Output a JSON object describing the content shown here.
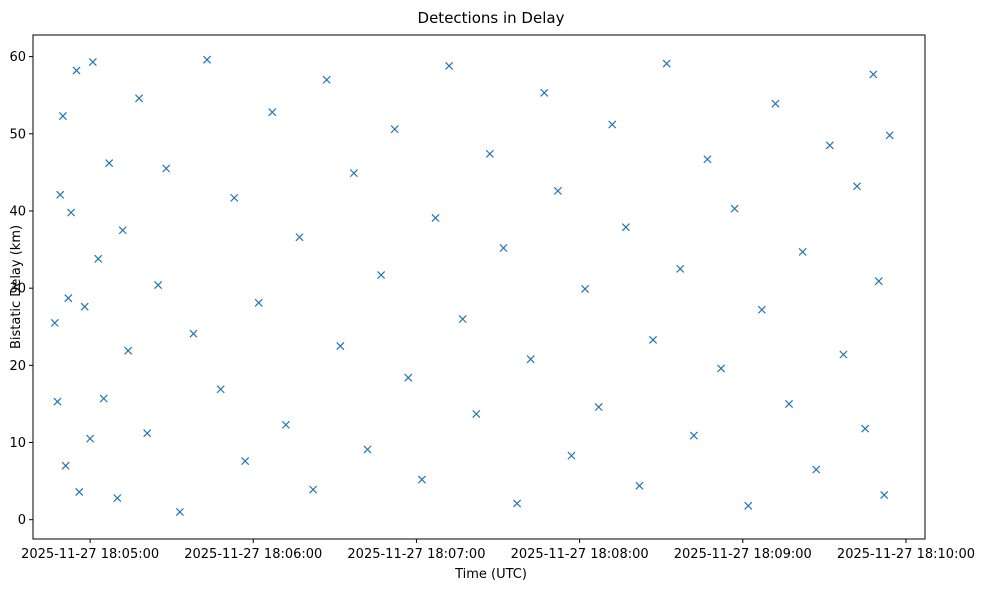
{
  "chart_data": {
    "type": "scatter",
    "title": "Detections in Delay",
    "xlabel": "Time (UTC)",
    "ylabel": "Bistatic Delay (km)",
    "xlim": [
      "2025-11-27 18:04:39",
      "2025-11-27 18:10:07"
    ],
    "ylim": [
      -2.5,
      62.8
    ],
    "grid": false,
    "legend": "none",
    "marker": "x",
    "x_ticks": [
      "2025-11-27 18:05:00",
      "2025-11-27 18:06:00",
      "2025-11-27 18:07:00",
      "2025-11-27 18:08:00",
      "2025-11-27 18:09:00",
      "2025-11-27 18:10:00"
    ],
    "y_ticks": [
      "0",
      "10",
      "20",
      "30",
      "40",
      "50",
      "60"
    ],
    "y_tick_values": [
      0,
      10,
      20,
      30,
      40,
      50,
      60
    ],
    "color": "#1f77b4",
    "series": [
      {
        "x_range": [
          "2025-11-27 18:04:47",
          "2025-11-27 18:09:54"
        ],
        "y_range": [
          1,
          60
        ],
        "points": [
          [
            "2025-11-27 18:04:47",
            25.5
          ],
          [
            "2025-11-27 18:04:48",
            15.3
          ],
          [
            "2025-11-27 18:04:49",
            42.1
          ],
          [
            "2025-11-27 18:04:50",
            52.3
          ],
          [
            "2025-11-27 18:04:51",
            7.0
          ],
          [
            "2025-11-27 18:04:52",
            28.7
          ],
          [
            "2025-11-27 18:04:53",
            39.8
          ],
          [
            "2025-11-27 18:04:55",
            58.2
          ],
          [
            "2025-11-27 18:04:56",
            3.6
          ],
          [
            "2025-11-27 18:04:58",
            27.6
          ],
          [
            "2025-11-27 18:05:00",
            10.5
          ],
          [
            "2025-11-27 18:05:01",
            59.3
          ],
          [
            "2025-11-27 18:05:03",
            33.8
          ],
          [
            "2025-11-27 18:05:05",
            15.7
          ],
          [
            "2025-11-27 18:05:07",
            46.2
          ],
          [
            "2025-11-27 18:05:10",
            2.8
          ],
          [
            "2025-11-27 18:05:12",
            37.5
          ],
          [
            "2025-11-27 18:05:14",
            21.9
          ],
          [
            "2025-11-27 18:05:18",
            54.6
          ],
          [
            "2025-11-27 18:05:21",
            11.2
          ],
          [
            "2025-11-27 18:05:25",
            30.4
          ],
          [
            "2025-11-27 18:05:28",
            45.5
          ],
          [
            "2025-11-27 18:05:33",
            1.0
          ],
          [
            "2025-11-27 18:05:38",
            24.1
          ],
          [
            "2025-11-27 18:05:43",
            59.6
          ],
          [
            "2025-11-27 18:05:48",
            16.9
          ],
          [
            "2025-11-27 18:05:53",
            41.7
          ],
          [
            "2025-11-27 18:05:57",
            7.6
          ],
          [
            "2025-11-27 18:06:02",
            28.1
          ],
          [
            "2025-11-27 18:06:07",
            52.8
          ],
          [
            "2025-11-27 18:06:12",
            12.3
          ],
          [
            "2025-11-27 18:06:17",
            36.6
          ],
          [
            "2025-11-27 18:06:22",
            3.9
          ],
          [
            "2025-11-27 18:06:27",
            57.0
          ],
          [
            "2025-11-27 18:06:32",
            22.5
          ],
          [
            "2025-11-27 18:06:37",
            44.9
          ],
          [
            "2025-11-27 18:06:42",
            9.1
          ],
          [
            "2025-11-27 18:06:47",
            31.7
          ],
          [
            "2025-11-27 18:06:52",
            50.6
          ],
          [
            "2025-11-27 18:06:57",
            18.4
          ],
          [
            "2025-11-27 18:07:02",
            5.2
          ],
          [
            "2025-11-27 18:07:07",
            39.1
          ],
          [
            "2025-11-27 18:07:12",
            58.8
          ],
          [
            "2025-11-27 18:07:17",
            26.0
          ],
          [
            "2025-11-27 18:07:22",
            13.7
          ],
          [
            "2025-11-27 18:07:27",
            47.4
          ],
          [
            "2025-11-27 18:07:32",
            35.2
          ],
          [
            "2025-11-27 18:07:37",
            2.1
          ],
          [
            "2025-11-27 18:07:42",
            20.8
          ],
          [
            "2025-11-27 18:07:47",
            55.3
          ],
          [
            "2025-11-27 18:07:52",
            42.6
          ],
          [
            "2025-11-27 18:07:57",
            8.3
          ],
          [
            "2025-11-27 18:08:02",
            29.9
          ],
          [
            "2025-11-27 18:08:07",
            14.6
          ],
          [
            "2025-11-27 18:08:12",
            51.2
          ],
          [
            "2025-11-27 18:08:17",
            37.9
          ],
          [
            "2025-11-27 18:08:22",
            4.4
          ],
          [
            "2025-11-27 18:08:27",
            23.3
          ],
          [
            "2025-11-27 18:08:32",
            59.1
          ],
          [
            "2025-11-27 18:08:37",
            32.5
          ],
          [
            "2025-11-27 18:08:42",
            10.9
          ],
          [
            "2025-11-27 18:08:47",
            46.7
          ],
          [
            "2025-11-27 18:08:52",
            19.6
          ],
          [
            "2025-11-27 18:08:57",
            40.3
          ],
          [
            "2025-11-27 18:09:02",
            1.8
          ],
          [
            "2025-11-27 18:09:07",
            27.2
          ],
          [
            "2025-11-27 18:09:12",
            53.9
          ],
          [
            "2025-11-27 18:09:17",
            15.0
          ],
          [
            "2025-11-27 18:09:22",
            34.7
          ],
          [
            "2025-11-27 18:09:27",
            6.5
          ],
          [
            "2025-11-27 18:09:32",
            48.5
          ],
          [
            "2025-11-27 18:09:37",
            21.4
          ],
          [
            "2025-11-27 18:09:42",
            43.2
          ],
          [
            "2025-11-27 18:09:45",
            11.8
          ],
          [
            "2025-11-27 18:09:48",
            57.7
          ],
          [
            "2025-11-27 18:09:50",
            30.9
          ],
          [
            "2025-11-27 18:09:52",
            3.2
          ],
          [
            "2025-11-27 18:09:54",
            49.8
          ]
        ]
      }
    ]
  }
}
